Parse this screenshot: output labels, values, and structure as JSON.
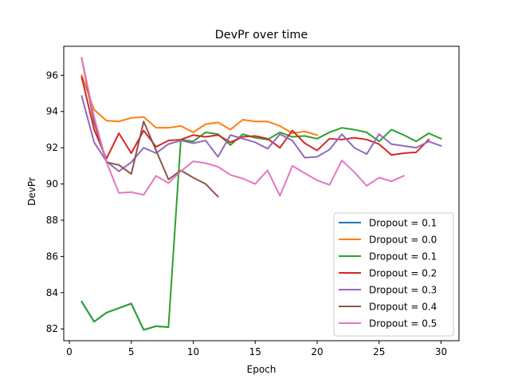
{
  "chart_data": {
    "type": "line",
    "title": "DevPr over time",
    "xlabel": "Epoch",
    "ylabel": "DevPr",
    "xlim": [
      -0.45,
      31.45
    ],
    "ylim": [
      81.35,
      97.6
    ],
    "xticks": [
      0,
      5,
      10,
      15,
      20,
      25,
      30
    ],
    "yticks": [
      82,
      84,
      86,
      88,
      90,
      92,
      94,
      96
    ],
    "grid": false,
    "legend_position": "lower-right",
    "series": [
      {
        "name": "Dropout = 0.1",
        "color": "#1f77b4",
        "x": [
          1,
          2,
          3,
          4,
          5,
          6,
          7,
          8
        ],
        "y": [
          83.5,
          82.4,
          82.9,
          83.15,
          83.4,
          81.95,
          82.15,
          82.1
        ]
      },
      {
        "name": "Dropout = 0.0",
        "color": "#ff7f0e",
        "x": [
          1,
          2,
          3,
          4,
          5,
          6,
          7,
          8,
          9,
          10,
          11,
          12,
          13,
          14,
          15,
          16,
          17,
          18,
          19,
          20
        ],
        "y": [
          96.0,
          94.1,
          93.5,
          93.45,
          93.65,
          93.7,
          93.1,
          93.1,
          93.2,
          92.85,
          93.3,
          93.4,
          93.0,
          93.55,
          93.45,
          93.45,
          93.2,
          92.8,
          92.9,
          92.7
        ]
      },
      {
        "name": "Dropout = 0.1",
        "color": "#2ca02c",
        "x": [
          1,
          2,
          3,
          4,
          5,
          6,
          7,
          8,
          9,
          10,
          11,
          12,
          13,
          14,
          15,
          16,
          17,
          18,
          19,
          20,
          21,
          22,
          23,
          24,
          25,
          26,
          27,
          28,
          29,
          30
        ],
        "y": [
          83.5,
          82.4,
          82.9,
          83.15,
          83.4,
          81.95,
          82.15,
          82.1,
          92.45,
          92.35,
          92.85,
          92.75,
          92.15,
          92.75,
          92.55,
          92.45,
          92.85,
          92.6,
          92.65,
          92.5,
          92.85,
          93.1,
          93.0,
          92.85,
          92.35,
          93.0,
          92.7,
          92.35,
          92.8,
          92.5
        ]
      },
      {
        "name": "Dropout = 0.2",
        "color": "#d62728",
        "x": [
          1,
          2,
          3,
          4,
          5,
          6,
          7,
          8,
          9,
          10,
          11,
          12,
          13,
          14,
          15,
          16,
          17,
          18,
          19,
          20,
          21,
          22,
          23,
          24,
          25,
          26,
          27,
          28,
          29
        ],
        "y": [
          95.9,
          93.0,
          91.4,
          92.8,
          91.7,
          92.95,
          92.05,
          92.4,
          92.45,
          92.7,
          92.6,
          92.7,
          92.3,
          92.6,
          92.65,
          92.5,
          92.0,
          92.95,
          92.25,
          91.85,
          92.5,
          92.45,
          92.55,
          92.45,
          92.2,
          91.6,
          91.7,
          91.75,
          92.45
        ]
      },
      {
        "name": "Dropout = 0.3",
        "color": "#9467bd",
        "x": [
          1,
          2,
          3,
          4,
          5,
          6,
          7,
          8,
          9,
          10,
          11,
          12,
          13,
          14,
          15,
          16,
          17,
          18,
          19,
          20,
          21,
          22,
          23,
          24,
          25,
          26,
          27,
          28,
          29,
          30
        ],
        "y": [
          94.85,
          92.3,
          91.25,
          90.7,
          91.2,
          92.0,
          91.7,
          92.2,
          92.4,
          92.25,
          92.4,
          91.5,
          92.7,
          92.5,
          92.3,
          91.95,
          92.75,
          92.4,
          91.45,
          91.5,
          91.9,
          92.75,
          92.0,
          91.65,
          92.75,
          92.2,
          92.1,
          92.0,
          92.35,
          92.1
        ]
      },
      {
        "name": "Dropout = 0.4",
        "color": "#8c564b",
        "x": [
          1,
          2,
          3,
          4,
          5,
          6,
          7,
          8,
          9,
          10,
          11,
          12
        ],
        "y": [
          96.95,
          93.4,
          91.2,
          91.05,
          90.55,
          93.45,
          91.85,
          90.25,
          90.75,
          90.35,
          90.0,
          89.3
        ]
      },
      {
        "name": "Dropout = 0.5",
        "color": "#e377c2",
        "x": [
          1,
          2,
          3,
          4,
          5,
          6,
          7,
          8,
          9,
          10,
          11,
          12,
          13,
          14,
          15,
          16,
          17,
          18,
          19,
          20,
          21,
          22,
          23,
          24,
          25,
          26,
          27
        ],
        "y": [
          96.95,
          93.7,
          91.2,
          89.5,
          89.55,
          89.4,
          90.45,
          90.05,
          90.7,
          91.25,
          91.15,
          90.95,
          90.5,
          90.3,
          90.0,
          90.75,
          89.35,
          91.0,
          90.6,
          90.2,
          89.95,
          91.3,
          90.65,
          89.9,
          90.35,
          90.15,
          90.45
        ]
      }
    ]
  }
}
